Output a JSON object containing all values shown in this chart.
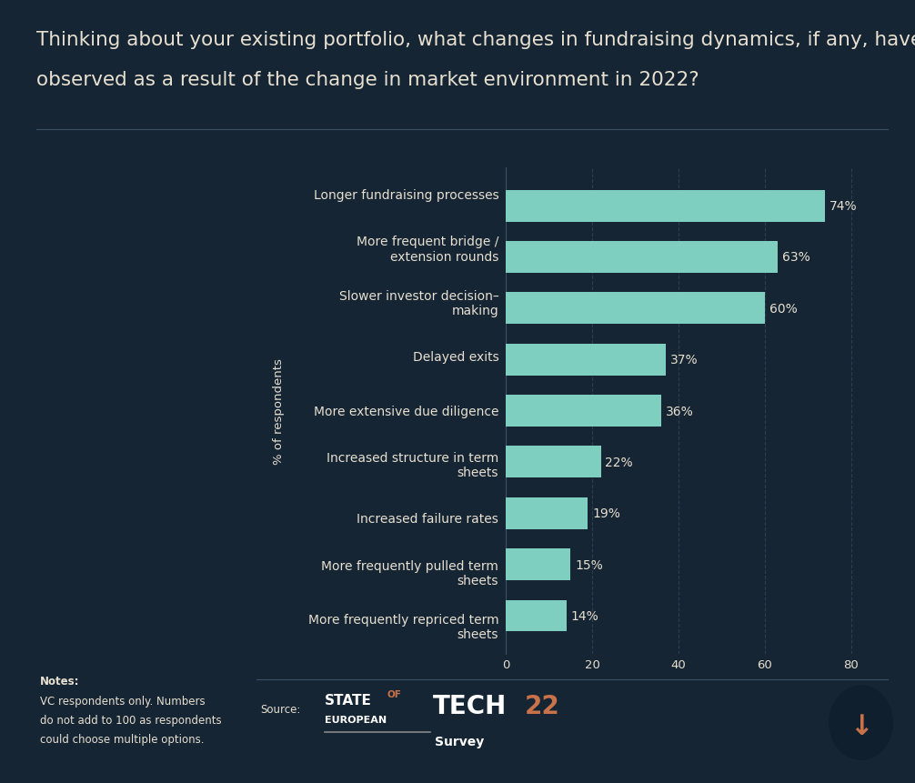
{
  "title_line1": "Thinking about your existing portfolio, what changes in fundraising dynamics, if any, have you",
  "title_line2": "observed as a result of the change in market environment in 2022?",
  "categories": [
    "Longer fundraising processes",
    "More frequent bridge /\nextension rounds",
    "Slower investor decision–\nmaking",
    "Delayed exits",
    "More extensive due diligence",
    "Increased structure in term\nsheets",
    "Increased failure rates",
    "More frequently pulled term\nsheets",
    "More frequently repriced term\nsheets"
  ],
  "values": [
    74,
    63,
    60,
    37,
    36,
    22,
    19,
    15,
    14
  ],
  "labels": [
    "74%",
    "63%",
    "60%",
    "37%",
    "36%",
    "22%",
    "19%",
    "15%",
    "14%"
  ],
  "bar_color": "#7ecfc0",
  "bg_color": "#152534",
  "text_color": "#e8e0d0",
  "label_color": "#e8e0d0",
  "ylabel": "% of respondents",
  "xlabel_ticks": [
    0,
    20,
    40,
    60,
    80
  ],
  "notes_line1": "Notes:",
  "notes_line2": "VC respondents only. Numbers",
  "notes_line3": "do not add to 100 as respondents",
  "notes_line4": "could choose multiple options.",
  "source_label": "Source:",
  "title_fontsize": 15.5,
  "category_fontsize": 10,
  "value_fontsize": 10,
  "axis_fontsize": 9.5,
  "notes_fontsize": 8.5,
  "grid_color": "#2a3f52",
  "separator_color": "#3a5068",
  "logo_white": "#ffffff",
  "logo_orange": "#c8724a",
  "logo_survey_color": "#ffffff"
}
